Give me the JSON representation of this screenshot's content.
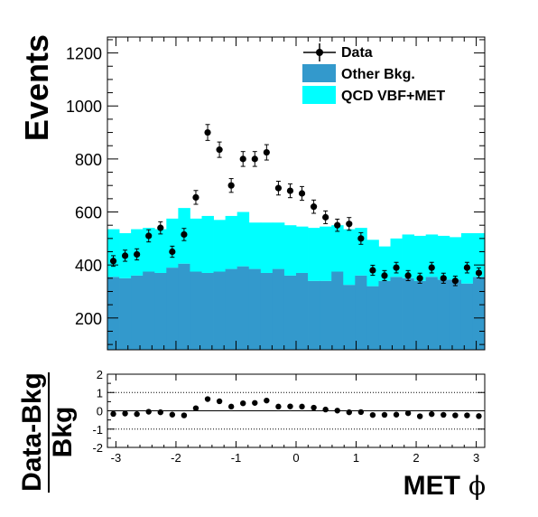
{
  "chart_data": [
    {
      "type": "bar",
      "title": "",
      "ylabel": "Events",
      "xlim": [
        -3.1416,
        3.1416
      ],
      "ylim": [
        80,
        1260
      ],
      "yticks": [
        200,
        400,
        600,
        800,
        1000,
        1200
      ],
      "ytick_labels": [
        "200",
        "400",
        "600",
        "800",
        "1000",
        "1200"
      ],
      "stacked": true,
      "bins": 32,
      "legend_placement": "top-right",
      "legend": [
        "Data",
        "Other Bkg.",
        "QCD VBF+MET"
      ],
      "series": [
        {
          "name": "Other Bkg.",
          "kind": "stacked-histogram",
          "color": "#3399cc",
          "values": [
            355,
            350,
            360,
            375,
            370,
            390,
            405,
            375,
            370,
            375,
            385,
            395,
            385,
            370,
            385,
            360,
            370,
            340,
            340,
            375,
            325,
            360,
            320,
            340,
            355,
            350,
            340,
            355,
            345,
            345,
            330,
            355
          ]
        },
        {
          "name": "QCD VBF+MET",
          "kind": "stacked-histogram",
          "color": "#00ffff",
          "values": [
            180,
            170,
            175,
            165,
            165,
            185,
            210,
            200,
            215,
            195,
            200,
            205,
            175,
            190,
            175,
            190,
            175,
            200,
            205,
            175,
            210,
            180,
            175,
            130,
            145,
            165,
            170,
            160,
            165,
            160,
            190,
            165
          ]
        },
        {
          "name": "Data",
          "kind": "points-with-errors",
          "color": "#000000",
          "values": [
            415,
            435,
            440,
            510,
            540,
            450,
            515,
            655,
            900,
            835,
            700,
            800,
            800,
            825,
            690,
            680,
            670,
            620,
            580,
            550,
            555,
            500,
            380,
            360,
            390,
            360,
            350,
            390,
            350,
            340,
            390,
            370
          ],
          "errors": [
            20,
            21,
            21,
            23,
            23,
            21,
            23,
            26,
            30,
            29,
            26,
            28,
            28,
            29,
            26,
            26,
            26,
            25,
            24,
            23,
            24,
            22,
            19,
            19,
            20,
            19,
            19,
            20,
            19,
            18,
            20,
            19
          ]
        }
      ]
    },
    {
      "type": "scatter",
      "title": "",
      "ylabel_numerator": "Data-Bkg",
      "ylabel_denominator": "Bkg",
      "xlabel": "MET",
      "xlabel_symbol": "ϕ",
      "xlim": [
        -3.1416,
        3.1416
      ],
      "ylim": [
        -2,
        2
      ],
      "xticks": [
        -3,
        -2,
        -1,
        0,
        1,
        2,
        3
      ],
      "xtick_labels": [
        "-3",
        "-2",
        "-1",
        "0",
        "1",
        "2",
        "3"
      ],
      "yticks": [
        -2,
        -1,
        0,
        1,
        2
      ],
      "ytick_labels": [
        "-2",
        "-1",
        "0",
        "1",
        "2"
      ],
      "grid": "dotted at ±1, solid at 0",
      "values": [
        -0.17,
        -0.15,
        -0.18,
        -0.05,
        -0.08,
        -0.21,
        -0.25,
        0.14,
        0.64,
        0.52,
        0.23,
        0.41,
        0.43,
        0.56,
        0.23,
        0.24,
        0.23,
        0.17,
        0.07,
        0.01,
        -0.08,
        -0.07,
        -0.23,
        -0.22,
        -0.21,
        -0.13,
        -0.3,
        -0.18,
        -0.22,
        -0.25,
        -0.25,
        -0.29
      ]
    }
  ]
}
